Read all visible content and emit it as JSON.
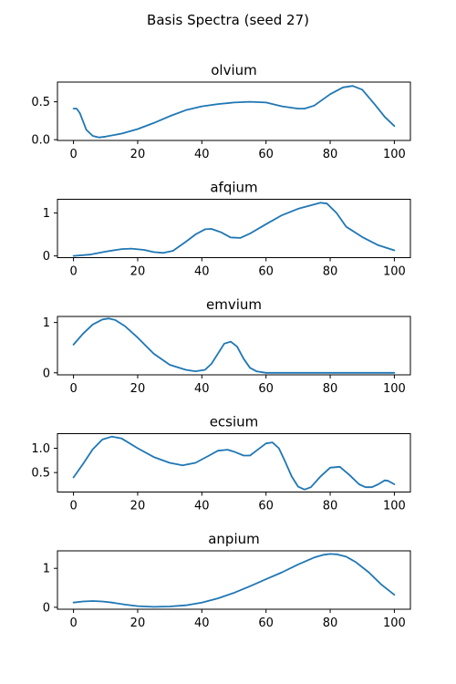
{
  "figure": {
    "title": "Basis Spectra (seed 27)"
  },
  "colors": {
    "line": "#1f77b4",
    "axes": "#000000",
    "background": "#ffffff"
  },
  "chart_data": [
    {
      "type": "line",
      "title": "olvium",
      "xlim": [
        -5,
        105
      ],
      "ylim": [
        -0.01,
        0.76
      ],
      "xticks": [
        0,
        20,
        40,
        60,
        80,
        100
      ],
      "yticks": [
        0.0,
        0.5
      ],
      "ytick_labels": [
        "0.0",
        "0.5"
      ],
      "x": [
        0,
        1,
        2,
        4,
        6,
        8,
        10,
        15,
        20,
        25,
        30,
        35,
        40,
        45,
        50,
        55,
        60,
        65,
        70,
        72,
        75,
        80,
        84,
        87,
        90,
        94,
        97,
        100
      ],
      "y": [
        0.41,
        0.41,
        0.35,
        0.13,
        0.05,
        0.03,
        0.04,
        0.08,
        0.14,
        0.22,
        0.31,
        0.39,
        0.44,
        0.47,
        0.49,
        0.5,
        0.49,
        0.44,
        0.41,
        0.41,
        0.45,
        0.6,
        0.69,
        0.71,
        0.66,
        0.46,
        0.3,
        0.18
      ]
    },
    {
      "type": "line",
      "title": "afqium",
      "xlim": [
        -5,
        105
      ],
      "ylim": [
        -0.04,
        1.32
      ],
      "xticks": [
        0,
        20,
        40,
        60,
        80,
        100
      ],
      "yticks": [
        0,
        1
      ],
      "ytick_labels": [
        "0",
        "1"
      ],
      "x": [
        0,
        5,
        10,
        15,
        18,
        22,
        25,
        28,
        31,
        35,
        38,
        41,
        43,
        46,
        49,
        52,
        55,
        60,
        65,
        70,
        74,
        77,
        79,
        82,
        85,
        90,
        95,
        100
      ],
      "y": [
        0.0,
        0.03,
        0.1,
        0.16,
        0.17,
        0.14,
        0.09,
        0.07,
        0.12,
        0.33,
        0.5,
        0.62,
        0.63,
        0.55,
        0.43,
        0.42,
        0.52,
        0.74,
        0.95,
        1.1,
        1.18,
        1.24,
        1.22,
        1.0,
        0.68,
        0.44,
        0.25,
        0.13
      ]
    },
    {
      "type": "line",
      "title": "emvium",
      "xlim": [
        -5,
        105
      ],
      "ylim": [
        -0.04,
        1.12
      ],
      "xticks": [
        0,
        20,
        40,
        60,
        80,
        100
      ],
      "yticks": [
        0,
        1
      ],
      "ytick_labels": [
        "0",
        "1"
      ],
      "x": [
        0,
        3,
        6,
        9,
        11,
        13,
        16,
        20,
        25,
        30,
        35,
        38,
        41,
        43,
        45,
        47,
        49,
        51,
        53,
        55,
        57,
        60,
        65,
        70,
        80,
        90,
        100
      ],
      "y": [
        0.56,
        0.78,
        0.96,
        1.06,
        1.08,
        1.05,
        0.93,
        0.7,
        0.38,
        0.16,
        0.06,
        0.03,
        0.06,
        0.18,
        0.38,
        0.58,
        0.62,
        0.52,
        0.28,
        0.1,
        0.03,
        0.0,
        0.0,
        0.0,
        0.0,
        0.0,
        0.0
      ]
    },
    {
      "type": "line",
      "title": "ecsium",
      "xlim": [
        -5,
        105
      ],
      "ylim": [
        0.1,
        1.3
      ],
      "xticks": [
        0,
        20,
        40,
        60,
        80,
        100
      ],
      "yticks": [
        0.5,
        1.0
      ],
      "ytick_labels": [
        "0.5",
        "1.0"
      ],
      "x": [
        0,
        3,
        6,
        9,
        12,
        15,
        20,
        25,
        30,
        34,
        38,
        42,
        45,
        48,
        50,
        53,
        55,
        57,
        60,
        62,
        64,
        66,
        68,
        70,
        72,
        74,
        77,
        80,
        83,
        86,
        89,
        91,
        93,
        95,
        97,
        98,
        100
      ],
      "y": [
        0.4,
        0.68,
        0.98,
        1.18,
        1.24,
        1.2,
        1.0,
        0.82,
        0.7,
        0.65,
        0.7,
        0.84,
        0.95,
        0.97,
        0.93,
        0.85,
        0.85,
        0.95,
        1.1,
        1.12,
        1.0,
        0.72,
        0.42,
        0.21,
        0.15,
        0.2,
        0.42,
        0.6,
        0.62,
        0.45,
        0.26,
        0.2,
        0.2,
        0.26,
        0.34,
        0.33,
        0.26
      ]
    },
    {
      "type": "line",
      "title": "anpium",
      "xlim": [
        -5,
        105
      ],
      "ylim": [
        -0.05,
        1.45
      ],
      "xticks": [
        0,
        20,
        40,
        60,
        80,
        100
      ],
      "yticks": [
        0,
        1
      ],
      "ytick_labels": [
        "0",
        "1"
      ],
      "x": [
        0,
        3,
        6,
        9,
        12,
        16,
        20,
        25,
        30,
        35,
        40,
        45,
        50,
        55,
        60,
        65,
        70,
        75,
        78,
        80,
        82,
        85,
        88,
        92,
        96,
        100
      ],
      "y": [
        0.12,
        0.15,
        0.16,
        0.15,
        0.12,
        0.07,
        0.03,
        0.01,
        0.02,
        0.05,
        0.12,
        0.23,
        0.37,
        0.54,
        0.72,
        0.9,
        1.1,
        1.28,
        1.35,
        1.37,
        1.36,
        1.3,
        1.16,
        0.9,
        0.58,
        0.32
      ]
    }
  ]
}
